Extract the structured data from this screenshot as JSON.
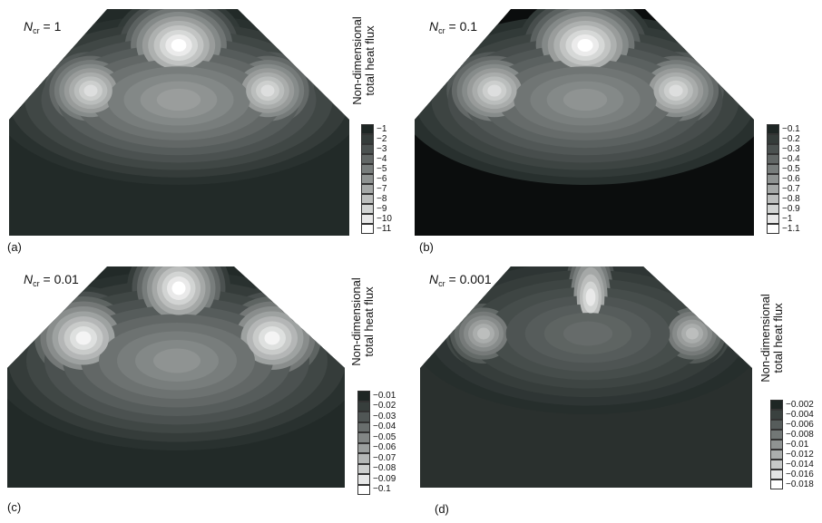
{
  "panels": [
    {
      "id": "a",
      "label": "(a)",
      "ncr_symbol": "N",
      "ncr_sub": "cr",
      "ncr_value": "= 1",
      "colorbar_title_line1": "Non-dimensional",
      "colorbar_title_line2": "total heat flux",
      "colorbar_ticks": [
        "−1",
        "−2",
        "−3",
        "−4",
        "−5",
        "−6",
        "−7",
        "−8",
        "−9",
        "−10",
        "−11"
      ],
      "background": "#222a28",
      "levels": 11
    },
    {
      "id": "b",
      "label": "(b)",
      "ncr_symbol": "N",
      "ncr_sub": "cr",
      "ncr_value": "= 0.1",
      "colorbar_title_line1": "",
      "colorbar_title_line2": "",
      "colorbar_ticks": [
        "−0.1",
        "−0.2",
        "−0.3",
        "−0.4",
        "−0.5",
        "−0.6",
        "−0.7",
        "−0.8",
        "−0.9",
        "−1",
        "−1.1"
      ],
      "background": "#0b0d0d",
      "levels": 11
    },
    {
      "id": "c",
      "label": "(c)",
      "ncr_symbol": "N",
      "ncr_sub": "cr",
      "ncr_value": "= 0.01",
      "colorbar_title_line1": "Non-dimensional",
      "colorbar_title_line2": "total heat flux",
      "colorbar_ticks": [
        "−0.01",
        "−0.02",
        "−0.03",
        "−0.04",
        "−0.05",
        "−0.06",
        "−0.07",
        "−0.08",
        "−0.09",
        "−0.1"
      ],
      "background": "#222a28",
      "levels": 10
    },
    {
      "id": "d",
      "label": "(d)",
      "ncr_symbol": "N",
      "ncr_sub": "cr",
      "ncr_value": "= 0.001",
      "colorbar_title_line1": "Non-dimensional",
      "colorbar_title_line2": "total heat flux",
      "colorbar_ticks": [
        "−0.002",
        "−0.004",
        "−0.006",
        "−0.008",
        "−0.010",
        "−0.012",
        "−0.014",
        "−0.016",
        "−0.018"
      ],
      "colorbar_ticks_visible": [
        "−0.002",
        "−0.004",
        "−0.006",
        "−0.008",
        "−0.01",
        "−0.012",
        "−0.014",
        "−0.016",
        "−0.018"
      ],
      "background": "#2a302e",
      "levels": 9
    }
  ],
  "colors": {
    "dark": "#1e2624",
    "light": "#ffffff"
  }
}
